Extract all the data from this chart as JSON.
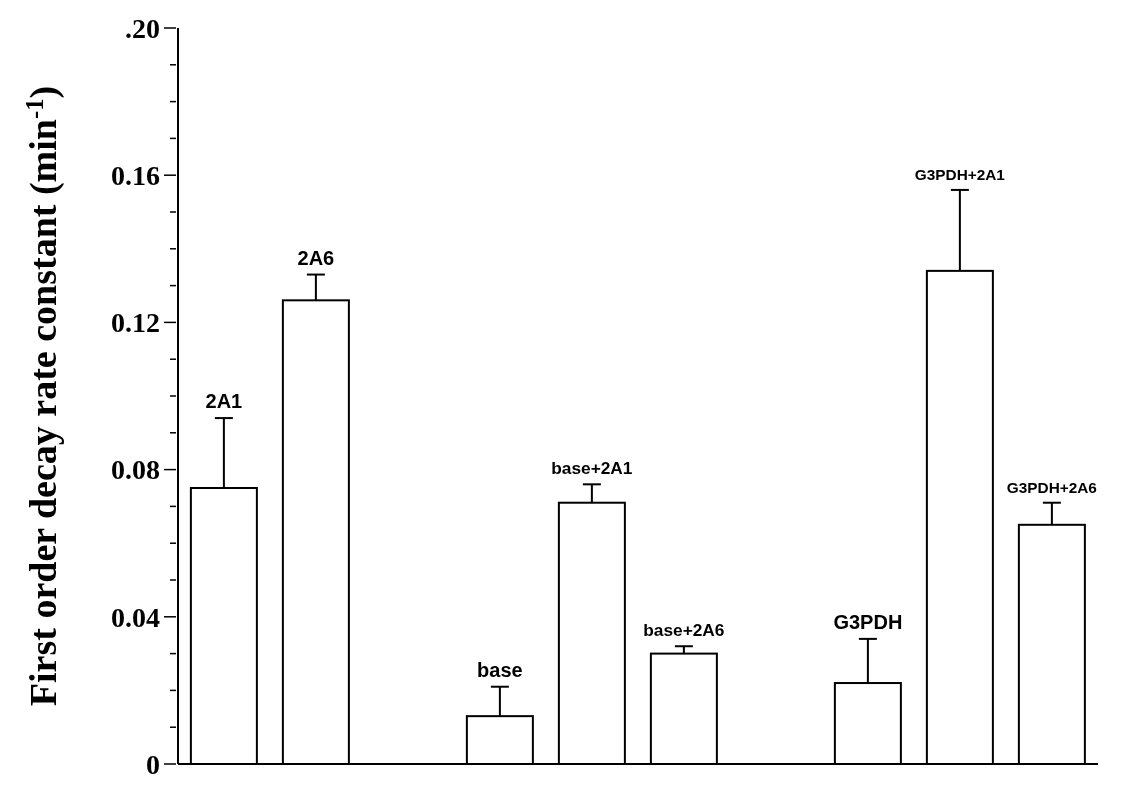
{
  "chart_data": {
    "type": "bar",
    "ylabel": "First order decay rate constant (min$^{-1}$)",
    "categories": [
      "2A1",
      "2A6",
      null,
      "base",
      "base+2A1",
      "base+2A6",
      null,
      "G3PDH",
      "G3PDH+2A1",
      "G3PDH+2A6"
    ],
    "values": [
      0.075,
      0.126,
      null,
      0.013,
      0.071,
      0.03,
      null,
      0.022,
      0.134,
      0.065
    ],
    "errors": [
      [
        0.075,
        0.094
      ],
      [
        0.126,
        0.133
      ],
      null,
      [
        0.013,
        0.021
      ],
      [
        0.071,
        0.076
      ],
      [
        0.03,
        0.032
      ],
      null,
      [
        0.022,
        0.034
      ],
      [
        0.134,
        0.156
      ],
      [
        0.065,
        0.071
      ]
    ],
    "colors": [
      "#ffffff",
      "#ffffff",
      "#ffffff",
      "#ffffff",
      "#ffffff",
      "#ffffff",
      "#ffffff",
      "#ffffff",
      "#ffffff",
      "#ffffff"
    ],
    "ylim": [
      0,
      0.2
    ],
    "yticks": [
      {
        "value": 0,
        "label": "0"
      },
      {
        "value": 0.01,
        "label": null
      },
      {
        "value": 0.02,
        "label": null
      },
      {
        "value": 0.03,
        "label": null
      },
      {
        "value": 0.04,
        "label": "0.04"
      },
      {
        "value": 0.05,
        "label": null
      },
      {
        "value": 0.06,
        "label": null
      },
      {
        "value": 0.07,
        "label": null
      },
      {
        "value": 0.08,
        "label": "0.08"
      },
      {
        "value": 0.09,
        "label": null
      },
      {
        "value": 0.1,
        "label": null
      },
      {
        "value": 0.11,
        "label": null
      },
      {
        "value": 0.12,
        "label": "0.12"
      },
      {
        "value": 0.13,
        "label": null
      },
      {
        "value": 0.14,
        "label": null
      },
      {
        "value": 0.15,
        "label": null
      },
      {
        "value": 0.16,
        "label": "0.16"
      },
      {
        "value": 0.17,
        "label": null
      },
      {
        "value": 0.18,
        "label": null
      },
      {
        "value": 0.19,
        "label": null
      },
      {
        "value": 0.2,
        "label": ".20"
      }
    ],
    "grid": false,
    "legend": false,
    "tick_labels": "y"
  }
}
